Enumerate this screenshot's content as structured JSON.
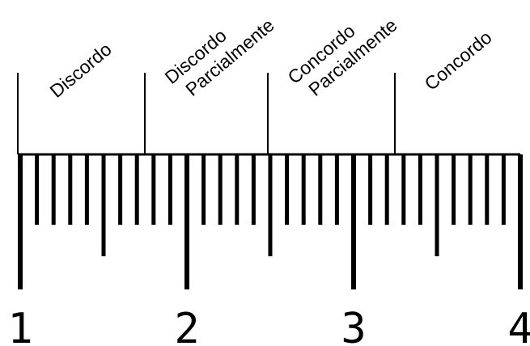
{
  "scale": {
    "min": 1,
    "max": 4,
    "labels": [
      "1",
      "2",
      "3",
      "4"
    ],
    "categories": [
      {
        "lines": [
          "Discordo"
        ]
      },
      {
        "lines": [
          "Discordo",
          "Parcialmente"
        ]
      },
      {
        "lines": [
          "Concordo",
          "Parcialmente"
        ]
      },
      {
        "lines": [
          "Concordo"
        ]
      }
    ]
  }
}
